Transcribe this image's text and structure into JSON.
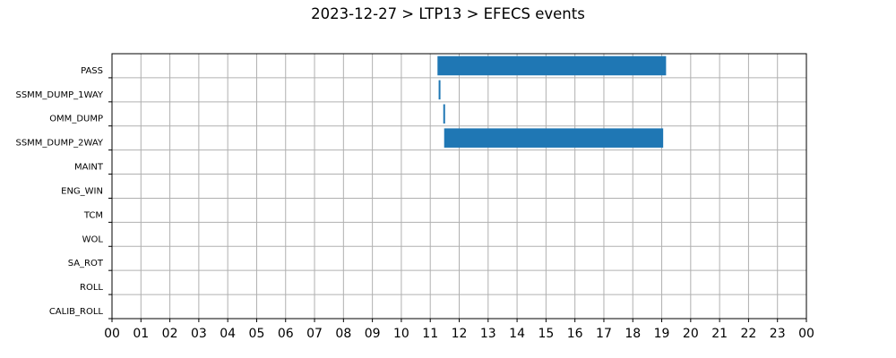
{
  "chart_data": {
    "type": "bar",
    "orientation": "horizontal",
    "chart_style": "gantt",
    "title": "2023-12-27 > LTP13 > EFECS events",
    "xlabel": "",
    "ylabel": "",
    "x_range": [
      0,
      24
    ],
    "x_tick_labels": [
      "00",
      "01",
      "02",
      "03",
      "04",
      "05",
      "06",
      "07",
      "08",
      "09",
      "10",
      "11",
      "12",
      "13",
      "14",
      "15",
      "16",
      "17",
      "18",
      "19",
      "20",
      "21",
      "22",
      "23",
      "00"
    ],
    "categories": [
      "PASS",
      "SSMM_DUMP_1WAY",
      "OMM_DUMP",
      "SSMM_DUMP_2WAY",
      "MAINT",
      "ENG_WIN",
      "TCM",
      "WOL",
      "SA_ROT",
      "ROLL",
      "CALIB_ROLL"
    ],
    "series": [
      {
        "color": "#1f77b4",
        "events": [
          {
            "category": "PASS",
            "start": 11.25,
            "end": 19.15
          },
          {
            "category": "SSMM_DUMP_1WAY",
            "start": 11.29,
            "end": 11.35
          },
          {
            "category": "OMM_DUMP",
            "start": 11.45,
            "end": 11.51
          },
          {
            "category": "SSMM_DUMP_2WAY",
            "start": 11.48,
            "end": 19.05
          }
        ]
      }
    ],
    "grid": true,
    "legend": "none"
  }
}
